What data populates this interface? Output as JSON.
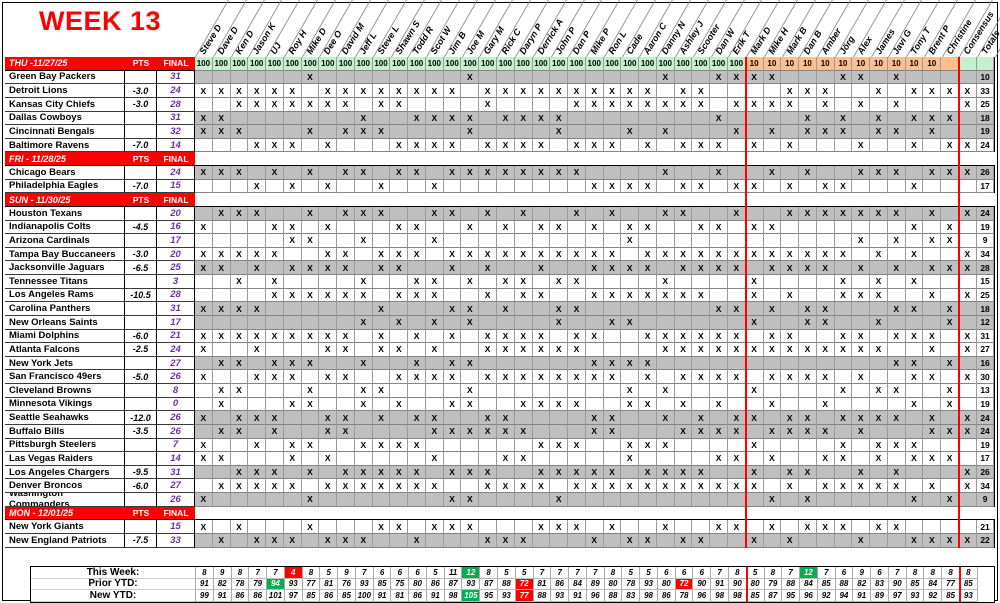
{
  "title": "WEEK 13",
  "columns": {
    "pts": "PTS",
    "final": "FINAL"
  },
  "players": [
    {
      "name": "Steve D",
      "buyin": "100"
    },
    {
      "name": "Dave D",
      "buyin": "100"
    },
    {
      "name": "Ken D",
      "buyin": "100"
    },
    {
      "name": "Jason K",
      "buyin": "100"
    },
    {
      "name": "UJ",
      "buyin": "100"
    },
    {
      "name": "Roy H",
      "buyin": "100"
    },
    {
      "name": "Mike D",
      "buyin": "100"
    },
    {
      "name": "Dee O",
      "buyin": "100"
    },
    {
      "name": "David M",
      "buyin": "100"
    },
    {
      "name": "Jeff L",
      "buyin": "100"
    },
    {
      "name": "Steve L",
      "buyin": "100"
    },
    {
      "name": "Shawn S",
      "buyin": "100"
    },
    {
      "name": "Todd R",
      "buyin": "100"
    },
    {
      "name": "Scot W",
      "buyin": "100"
    },
    {
      "name": "Jim B",
      "buyin": "100"
    },
    {
      "name": "Joe M",
      "buyin": "100"
    },
    {
      "name": "Gary M",
      "buyin": "100"
    },
    {
      "name": "Rick C",
      "buyin": "100"
    },
    {
      "name": "Daryn P",
      "buyin": "100"
    },
    {
      "name": "Derrick A",
      "buyin": "100"
    },
    {
      "name": "John P",
      "buyin": "100"
    },
    {
      "name": "Dan P",
      "buyin": "100"
    },
    {
      "name": "Mike P",
      "buyin": "100"
    },
    {
      "name": "Ron L",
      "buyin": "100"
    },
    {
      "name": "Cade",
      "buyin": "100"
    },
    {
      "name": "Aaron C",
      "buyin": "100"
    },
    {
      "name": "Danny N",
      "buyin": "100"
    },
    {
      "name": "Ashley J",
      "buyin": "100"
    },
    {
      "name": "Scooter",
      "buyin": "100"
    },
    {
      "name": "Dan W",
      "buyin": "100"
    },
    {
      "name": "Erik T",
      "buyin": "100"
    },
    {
      "name": "Mark D",
      "buyin": "10"
    },
    {
      "name": "Mike H",
      "buyin": "10"
    },
    {
      "name": "Mark B",
      "buyin": "10"
    },
    {
      "name": "Dan B",
      "buyin": "10"
    },
    {
      "name": "Amber",
      "buyin": "10"
    },
    {
      "name": "Jörg",
      "buyin": "10"
    },
    {
      "name": "Alex",
      "buyin": "10"
    },
    {
      "name": "James",
      "buyin": "10"
    },
    {
      "name": "Javi G",
      "buyin": "10"
    },
    {
      "name": "Tony T",
      "buyin": "10"
    },
    {
      "name": "Brent P",
      "buyin": "10"
    },
    {
      "name": "Christine",
      "buyin": ""
    },
    {
      "name": "Consensus",
      "buyin": ""
    },
    {
      "name": "Totals",
      "buyin": ""
    }
  ],
  "rows": [
    {
      "type": "date",
      "label": "THU -11/27/25",
      "buyins": true
    },
    {
      "type": "team",
      "team": "Green Bay Packers",
      "pts": "",
      "final": "31",
      "shaded": true,
      "cons": false,
      "total": 10,
      "picks": [
        7,
        16,
        27,
        30,
        31,
        32,
        33,
        37,
        38,
        40
      ]
    },
    {
      "type": "team",
      "team": "Detroit Lions",
      "pts": "-3.0",
      "final": "24",
      "shaded": false,
      "cons": true,
      "total": 33,
      "picks": [
        1,
        2,
        3,
        4,
        5,
        6,
        8,
        9,
        10,
        11,
        12,
        13,
        14,
        15,
        17,
        18,
        19,
        20,
        21,
        22,
        23,
        24,
        25,
        26,
        28,
        29,
        34,
        35,
        36,
        39,
        41,
        42,
        43
      ]
    },
    {
      "type": "team",
      "team": "Kansas City Chiefs",
      "pts": "-3.0",
      "final": "28",
      "shaded": false,
      "cons": true,
      "total": 25,
      "picks": [
        3,
        4,
        5,
        6,
        7,
        8,
        9,
        11,
        12,
        17,
        22,
        23,
        24,
        25,
        26,
        27,
        28,
        29,
        31,
        32,
        33,
        34,
        36,
        38,
        40
      ]
    },
    {
      "type": "team",
      "team": "Dallas Cowboys",
      "pts": "",
      "final": "31",
      "shaded": true,
      "cons": false,
      "total": 18,
      "picks": [
        1,
        2,
        10,
        13,
        14,
        15,
        16,
        18,
        19,
        20,
        21,
        30,
        35,
        37,
        39,
        41,
        42,
        43
      ]
    },
    {
      "type": "team",
      "team": "Cincinnati Bengals",
      "pts": "",
      "final": "32",
      "shaded": true,
      "cons": false,
      "total": 19,
      "picks": [
        1,
        2,
        3,
        7,
        9,
        10,
        11,
        16,
        21,
        25,
        27,
        31,
        33,
        35,
        36,
        37,
        39,
        40,
        42
      ]
    },
    {
      "type": "team",
      "team": "Baltimore Ravens",
      "pts": "-7.0",
      "final": "14",
      "shaded": false,
      "cons": true,
      "total": 24,
      "picks": [
        4,
        5,
        6,
        8,
        12,
        13,
        14,
        15,
        17,
        18,
        19,
        20,
        22,
        23,
        24,
        26,
        28,
        29,
        30,
        32,
        34,
        38,
        41,
        43
      ]
    },
    {
      "type": "date",
      "label": "FRI - 11/28/25"
    },
    {
      "type": "team",
      "team": "Chicago Bears",
      "pts": "",
      "final": "24",
      "shaded": true,
      "cons": true,
      "total": 26,
      "picks": [
        1,
        2,
        3,
        5,
        7,
        9,
        10,
        12,
        13,
        15,
        16,
        17,
        18,
        19,
        20,
        21,
        22,
        27,
        30,
        33,
        35,
        38,
        39,
        40,
        42,
        43
      ]
    },
    {
      "type": "team",
      "team": "Philadelphia Eagles",
      "pts": "-7.0",
      "final": "15",
      "shaded": false,
      "cons": false,
      "total": 17,
      "picks": [
        4,
        6,
        8,
        11,
        14,
        23,
        24,
        25,
        26,
        28,
        29,
        31,
        32,
        34,
        36,
        37,
        41
      ]
    },
    {
      "type": "date",
      "label": "SUN - 11/30/25"
    },
    {
      "type": "team",
      "team": "Houston Texans",
      "pts": "",
      "final": "20",
      "shaded": true,
      "cons": true,
      "total": 24,
      "picks": [
        2,
        3,
        4,
        7,
        9,
        10,
        11,
        14,
        15,
        17,
        19,
        22,
        24,
        27,
        28,
        31,
        34,
        35,
        36,
        37,
        38,
        39,
        40,
        42
      ]
    },
    {
      "type": "team",
      "team": "Indianapolis Colts",
      "pts": "-4.5",
      "final": "16",
      "shaded": false,
      "cons": false,
      "total": 19,
      "picks": [
        1,
        5,
        6,
        8,
        12,
        13,
        16,
        18,
        20,
        21,
        23,
        25,
        26,
        29,
        30,
        32,
        33,
        41,
        43
      ]
    },
    {
      "type": "team",
      "team": "Arizona Cardinals",
      "pts": "",
      "final": "17",
      "shaded": false,
      "cons": false,
      "total": 9,
      "picks": [
        6,
        7,
        10,
        14,
        25,
        38,
        40,
        42,
        43
      ]
    },
    {
      "type": "team",
      "team": "Tampa Bay Buccaneers",
      "pts": "-3.0",
      "final": "20",
      "shaded": false,
      "cons": true,
      "total": 34,
      "picks": [
        1,
        2,
        3,
        4,
        5,
        8,
        9,
        11,
        12,
        13,
        15,
        16,
        17,
        18,
        19,
        20,
        21,
        22,
        23,
        24,
        26,
        27,
        28,
        29,
        30,
        31,
        32,
        33,
        34,
        35,
        36,
        37,
        39,
        41
      ]
    },
    {
      "type": "team",
      "team": "Jacksonville Jaguars",
      "pts": "-6.5",
      "final": "25",
      "shaded": true,
      "cons": true,
      "total": 28,
      "picks": [
        1,
        2,
        4,
        6,
        7,
        8,
        9,
        11,
        12,
        15,
        17,
        20,
        23,
        24,
        25,
        26,
        28,
        29,
        30,
        31,
        33,
        34,
        35,
        36,
        38,
        40,
        42,
        43
      ]
    },
    {
      "type": "team",
      "team": "Tennessee Titans",
      "pts": "",
      "final": "3",
      "shaded": false,
      "cons": false,
      "total": 15,
      "picks": [
        3,
        5,
        10,
        13,
        14,
        16,
        18,
        19,
        21,
        22,
        27,
        32,
        37,
        39,
        41
      ]
    },
    {
      "type": "team",
      "team": "Los Angeles Rams",
      "pts": "-10.5",
      "final": "28",
      "shaded": false,
      "cons": true,
      "total": 25,
      "picks": [
        5,
        6,
        7,
        8,
        9,
        10,
        12,
        13,
        14,
        17,
        19,
        20,
        23,
        24,
        25,
        26,
        27,
        28,
        29,
        32,
        34,
        37,
        38,
        39,
        42
      ]
    },
    {
      "type": "team",
      "team": "Carolina Panthers",
      "pts": "",
      "final": "31",
      "shaded": true,
      "cons": false,
      "total": 18,
      "picks": [
        1,
        2,
        3,
        4,
        11,
        15,
        16,
        18,
        21,
        22,
        30,
        31,
        33,
        35,
        36,
        40,
        41,
        43
      ]
    },
    {
      "type": "team",
      "team": "New Orleans Saints",
      "pts": "",
      "final": "17",
      "shaded": true,
      "cons": false,
      "total": 12,
      "picks": [
        10,
        12,
        14,
        16,
        21,
        24,
        25,
        32,
        35,
        36,
        39,
        43
      ]
    },
    {
      "type": "team",
      "team": "Miami Dolphins",
      "pts": "-6.0",
      "final": "21",
      "shaded": false,
      "cons": true,
      "total": 31,
      "picks": [
        1,
        2,
        3,
        4,
        5,
        6,
        7,
        8,
        9,
        11,
        13,
        15,
        17,
        18,
        19,
        20,
        22,
        23,
        26,
        27,
        28,
        29,
        30,
        31,
        33,
        34,
        37,
        38,
        40,
        41,
        42
      ]
    },
    {
      "type": "team",
      "team": "Atlanta Falcons",
      "pts": "-2.5",
      "final": "24",
      "shaded": false,
      "cons": true,
      "total": 27,
      "picks": [
        1,
        4,
        8,
        9,
        11,
        12,
        14,
        17,
        18,
        19,
        20,
        21,
        22,
        27,
        28,
        29,
        30,
        31,
        32,
        33,
        34,
        35,
        36,
        37,
        38,
        39,
        42
      ]
    },
    {
      "type": "team",
      "team": "New York Jets",
      "pts": "",
      "final": "27",
      "shaded": true,
      "cons": false,
      "total": 16,
      "picks": [
        2,
        3,
        5,
        6,
        7,
        10,
        13,
        15,
        16,
        23,
        24,
        25,
        26,
        40,
        41,
        43
      ]
    },
    {
      "type": "team",
      "team": "San Francisco 49ers",
      "pts": "-5.0",
      "final": "26",
      "shaded": false,
      "cons": true,
      "total": 30,
      "picks": [
        1,
        4,
        5,
        6,
        8,
        9,
        12,
        13,
        14,
        15,
        17,
        18,
        19,
        20,
        21,
        22,
        23,
        24,
        26,
        28,
        29,
        30,
        31,
        33,
        34,
        35,
        36,
        38,
        41,
        42
      ]
    },
    {
      "type": "team",
      "team": "Cleveland Browns",
      "pts": "",
      "final": "8",
      "shaded": false,
      "cons": false,
      "total": 13,
      "picks": [
        2,
        3,
        7,
        10,
        11,
        16,
        25,
        27,
        32,
        37,
        39,
        40,
        43
      ]
    },
    {
      "type": "team",
      "team": "Minnesota Vikings",
      "pts": "",
      "final": "0",
      "shaded": false,
      "cons": false,
      "total": 19,
      "picks": [
        2,
        6,
        7,
        10,
        12,
        15,
        16,
        19,
        20,
        21,
        22,
        25,
        26,
        28,
        30,
        33,
        36,
        41,
        43
      ]
    },
    {
      "type": "team",
      "team": "Seattle Seahawks",
      "pts": "-12.0",
      "final": "26",
      "shaded": true,
      "cons": true,
      "total": 24,
      "picks": [
        1,
        3,
        4,
        5,
        8,
        9,
        11,
        13,
        14,
        17,
        18,
        23,
        24,
        27,
        29,
        31,
        32,
        34,
        35,
        37,
        38,
        39,
        40,
        42
      ]
    },
    {
      "type": "team",
      "team": "Buffalo Bills",
      "pts": "-3.5",
      "final": "26",
      "shaded": true,
      "cons": true,
      "total": 24,
      "picks": [
        2,
        3,
        5,
        8,
        9,
        14,
        15,
        16,
        17,
        18,
        19,
        23,
        24,
        28,
        29,
        30,
        31,
        33,
        34,
        35,
        36,
        38,
        42,
        43
      ]
    },
    {
      "type": "team",
      "team": "Pittsburgh Steelers",
      "pts": "",
      "final": "7",
      "shaded": false,
      "cons": false,
      "total": 19,
      "picks": [
        1,
        4,
        6,
        7,
        10,
        11,
        12,
        13,
        20,
        21,
        22,
        25,
        26,
        27,
        32,
        37,
        39,
        40,
        41
      ]
    },
    {
      "type": "team",
      "team": "Las Vegas Raiders",
      "pts": "",
      "final": "14",
      "shaded": false,
      "cons": false,
      "total": 17,
      "picks": [
        1,
        2,
        6,
        8,
        14,
        18,
        19,
        25,
        30,
        31,
        33,
        36,
        37,
        39,
        41,
        42,
        43
      ]
    },
    {
      "type": "team",
      "team": "Los Angeles Chargers",
      "pts": "-9.5",
      "final": "31",
      "shaded": true,
      "cons": true,
      "total": 26,
      "picks": [
        3,
        4,
        5,
        7,
        9,
        10,
        11,
        12,
        13,
        15,
        16,
        17,
        20,
        21,
        22,
        23,
        24,
        26,
        27,
        28,
        29,
        32,
        34,
        35,
        38,
        40
      ]
    },
    {
      "type": "team",
      "team": "Denver Broncos",
      "pts": "-6.0",
      "final": "27",
      "shaded": false,
      "cons": true,
      "total": 34,
      "picks": [
        2,
        3,
        4,
        5,
        6,
        8,
        9,
        10,
        11,
        12,
        13,
        14,
        17,
        18,
        19,
        20,
        22,
        23,
        24,
        25,
        26,
        27,
        28,
        29,
        30,
        31,
        32,
        34,
        36,
        37,
        38,
        39,
        40,
        42
      ]
    },
    {
      "type": "team",
      "team": "Washington Commanders",
      "pts": "",
      "final": "26",
      "shaded": true,
      "cons": false,
      "total": 9,
      "picks": [
        1,
        7,
        15,
        16,
        21,
        33,
        35,
        41,
        43
      ]
    },
    {
      "type": "date",
      "label": "MON - 12/01/25"
    },
    {
      "type": "team",
      "team": "New York Giants",
      "pts": "",
      "final": "15",
      "shaded": false,
      "cons": false,
      "total": 21,
      "picks": [
        1,
        3,
        7,
        11,
        12,
        14,
        15,
        16,
        20,
        21,
        22,
        24,
        27,
        30,
        31,
        33,
        35,
        36,
        37,
        39,
        40
      ]
    },
    {
      "type": "team",
      "team": "New England Patriots",
      "pts": "-7.5",
      "final": "33",
      "shaded": true,
      "cons": true,
      "total": 22,
      "picks": [
        2,
        4,
        5,
        6,
        8,
        9,
        10,
        13,
        17,
        18,
        19,
        23,
        25,
        26,
        28,
        29,
        32,
        34,
        38,
        41,
        42,
        43
      ]
    }
  ],
  "summary": {
    "rows": [
      {
        "label": "This Week:",
        "values": [
          8,
          9,
          8,
          7,
          7,
          4,
          8,
          5,
          9,
          7,
          6,
          6,
          6,
          5,
          11,
          12,
          8,
          5,
          5,
          7,
          7,
          7,
          7,
          8,
          5,
          5,
          6,
          6,
          6,
          7,
          8,
          5,
          8,
          7,
          12,
          7,
          6,
          9,
          6,
          7,
          8,
          8,
          8,
          8
        ],
        "green": [
          16,
          35
        ],
        "red": [
          6
        ]
      },
      {
        "label": "Prior YTD:",
        "values": [
          91,
          82,
          78,
          79,
          94,
          93,
          77,
          81,
          76,
          93,
          85,
          75,
          80,
          86,
          87,
          93,
          87,
          88,
          72,
          81,
          86,
          84,
          89,
          80,
          78,
          93,
          80,
          72,
          90,
          91,
          90,
          80,
          79,
          88,
          84,
          85,
          88,
          82,
          83,
          90,
          85,
          84,
          77,
          85
        ],
        "green": [
          5
        ],
        "red": [
          19,
          28
        ]
      },
      {
        "label": "New YTD:",
        "values": [
          99,
          91,
          86,
          86,
          101,
          97,
          85,
          86,
          85,
          100,
          91,
          81,
          86,
          91,
          98,
          105,
          95,
          93,
          77,
          88,
          93,
          91,
          96,
          88,
          83,
          98,
          86,
          78,
          96,
          98,
          98,
          85,
          87,
          95,
          96,
          92,
          94,
          91,
          89,
          97,
          93,
          92,
          85,
          93
        ],
        "green": [
          16
        ],
        "red": [
          19
        ]
      }
    ]
  },
  "colors": {
    "bar_red": "#FE0000",
    "buyin_green": "#C6EFCE",
    "buyin_orange": "#FAC090",
    "row_gray": "#BFBFBF",
    "final_purple": "#7030A0",
    "hi_green": "#00B050",
    "hi_red": "#FF0000",
    "title_red": "#FF0000"
  }
}
